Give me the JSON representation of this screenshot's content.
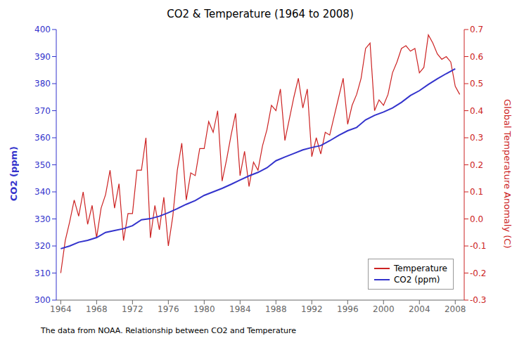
{
  "chart_data": {
    "type": "line",
    "title": "CO2 & Temperature (1964 to 2008)",
    "ylabel": "CO2 (ppm)",
    "y2label": "Global Temperature Anomaly (C)",
    "annotations": [
      "The data from NOAA. Relationship between CO2 and Temperature"
    ],
    "xlim": [
      1963.5,
      2009
    ],
    "xticks": [
      1964,
      1968,
      1972,
      1976,
      1980,
      1984,
      1988,
      1992,
      1996,
      2000,
      2004,
      2008
    ],
    "ylim": [
      300,
      400
    ],
    "yticks": [
      300,
      310,
      320,
      330,
      340,
      350,
      360,
      370,
      380,
      390,
      400
    ],
    "y2lim": [
      -0.3,
      0.7
    ],
    "y2ticks": [
      -0.3,
      -0.2,
      -0.1,
      {
        "value": 0,
        "label": "0.0"
      },
      0.1,
      0.2,
      0.3,
      0.4,
      0.5,
      0.6,
      0.7
    ],
    "grid": false,
    "legend": "lower right",
    "series": [
      {
        "name": "Temperature",
        "color": "#cc2222",
        "axis": "y2",
        "x": [
          1964,
          1964.5,
          1965,
          1965.5,
          1966,
          1966.5,
          1967,
          1967.5,
          1968,
          1968.5,
          1969,
          1969.5,
          1970,
          1970.5,
          1971,
          1971.5,
          1972,
          1972.5,
          1973,
          1973.5,
          1974,
          1974.5,
          1975,
          1975.5,
          1976,
          1976.5,
          1977,
          1977.5,
          1978,
          1978.5,
          1979,
          1979.5,
          1980,
          1980.5,
          1981,
          1981.5,
          1982,
          1982.5,
          1983,
          1983.5,
          1984,
          1984.5,
          1985,
          1985.5,
          1986,
          1986.5,
          1987,
          1987.5,
          1988,
          1988.5,
          1989,
          1989.5,
          1990,
          1990.5,
          1991,
          1991.5,
          1992,
          1992.5,
          1993,
          1993.5,
          1994,
          1994.5,
          1995,
          1995.5,
          1996,
          1996.5,
          1997,
          1997.5,
          1998,
          1998.5,
          1999,
          1999.5,
          2000,
          2000.5,
          2001,
          2001.5,
          2002,
          2002.5,
          2003,
          2003.5,
          2004,
          2004.5,
          2005,
          2005.5,
          2006,
          2006.5,
          2007,
          2007.5,
          2008,
          2008.5
        ],
        "values": [
          -0.2,
          -0.08,
          -0.01,
          0.07,
          0.01,
          0.1,
          -0.02,
          0.05,
          -0.07,
          0.04,
          0.09,
          0.18,
          0.04,
          0.13,
          -0.08,
          0.02,
          0.02,
          0.18,
          0.18,
          0.3,
          -0.07,
          0.05,
          -0.04,
          0.08,
          -0.1,
          0.01,
          0.18,
          0.28,
          0.07,
          0.17,
          0.16,
          0.26,
          0.26,
          0.36,
          0.32,
          0.4,
          0.14,
          0.22,
          0.31,
          0.39,
          0.16,
          0.25,
          0.12,
          0.21,
          0.18,
          0.27,
          0.33,
          0.42,
          0.4,
          0.48,
          0.29,
          0.37,
          0.45,
          0.52,
          0.41,
          0.48,
          0.23,
          0.3,
          0.24,
          0.32,
          0.31,
          0.38,
          0.45,
          0.52,
          0.35,
          0.42,
          0.46,
          0.52,
          0.63,
          0.65,
          0.4,
          0.44,
          0.42,
          0.46,
          0.54,
          0.58,
          0.63,
          0.64,
          0.62,
          0.63,
          0.54,
          0.56,
          0.68,
          0.65,
          0.61,
          0.59,
          0.6,
          0.58,
          0.49,
          0.46
        ]
      },
      {
        "name": "CO2 (ppm)",
        "color": "#3333cc",
        "axis": "y",
        "x": [
          1964,
          1965,
          1966,
          1967,
          1968,
          1969,
          1970,
          1971,
          1972,
          1973,
          1974,
          1975,
          1976,
          1977,
          1978,
          1979,
          1980,
          1981,
          1982,
          1983,
          1984,
          1985,
          1986,
          1987,
          1988,
          1989,
          1990,
          1991,
          1992,
          1993,
          1994,
          1995,
          1996,
          1997,
          1998,
          1999,
          2000,
          2001,
          2002,
          2003,
          2004,
          2005,
          2006,
          2007,
          2008
        ],
        "values": [
          319.0,
          320.0,
          321.4,
          322.1,
          323.1,
          325.0,
          325.7,
          326.4,
          327.5,
          329.7,
          330.1,
          331.0,
          332.3,
          333.8,
          335.4,
          336.8,
          338.7,
          340.0,
          341.3,
          342.8,
          344.4,
          345.9,
          347.2,
          348.9,
          351.5,
          352.9,
          354.2,
          355.5,
          356.4,
          357.1,
          358.9,
          360.9,
          362.6,
          363.8,
          366.6,
          368.3,
          369.5,
          371.0,
          373.1,
          375.6,
          377.4,
          379.7,
          381.8,
          383.7,
          385.5
        ]
      }
    ]
  }
}
